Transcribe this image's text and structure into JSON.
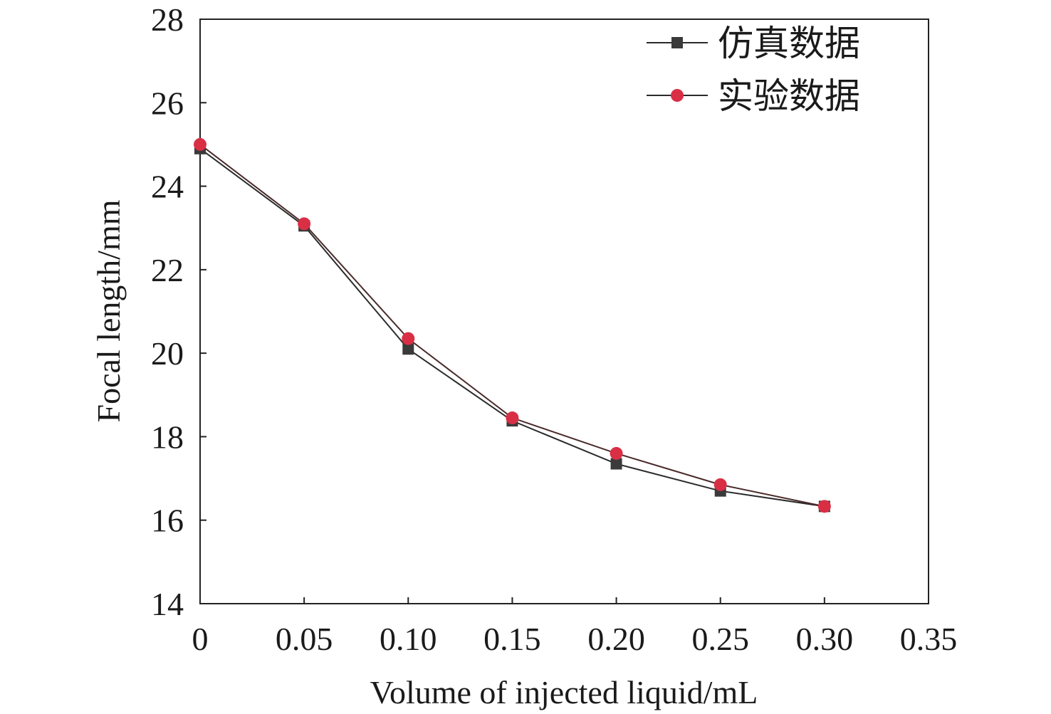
{
  "chart_data": {
    "type": "line",
    "xlabel": "Volume of injected liquid/mL",
    "ylabel": "Focal length/mm",
    "xlim": [
      0,
      0.35
    ],
    "ylim": [
      14,
      28
    ],
    "x_ticks": [
      0,
      0.05,
      0.1,
      0.15,
      0.2,
      0.25,
      0.3,
      0.35
    ],
    "x_tick_labels": [
      "0",
      "0.05",
      "0.10",
      "0.15",
      "0.20",
      "0.25",
      "0.30",
      "0.35"
    ],
    "y_ticks": [
      14,
      16,
      18,
      20,
      22,
      24,
      26,
      28
    ],
    "y_tick_labels": [
      "14",
      "16",
      "18",
      "20",
      "22",
      "24",
      "26",
      "28"
    ],
    "legend_position": "top-right",
    "grid": false,
    "x": [
      0,
      0.05,
      0.1,
      0.15,
      0.2,
      0.25,
      0.3
    ],
    "series": [
      {
        "name": "仿真数据",
        "marker": "square",
        "color": "#3a3a3a",
        "values": [
          24.9,
          23.05,
          20.1,
          18.38,
          17.35,
          16.7,
          16.33
        ]
      },
      {
        "name": "实验数据",
        "marker": "circle",
        "color": "#d92f45",
        "values": [
          25.0,
          23.1,
          20.35,
          18.45,
          17.6,
          16.85,
          16.33
        ]
      }
    ]
  }
}
